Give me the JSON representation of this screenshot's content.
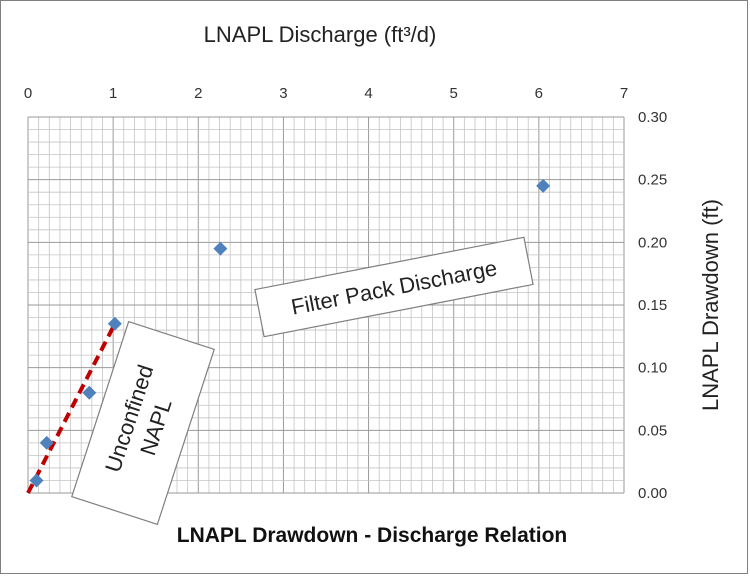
{
  "chart_data": {
    "type": "scatter",
    "title": "LNAPL Drawdown - Discharge Relation",
    "xlabel": "LNAPL Discharge (ft³/d)",
    "ylabel": "LNAPL Drawdown (ft)",
    "xlim": [
      0,
      7
    ],
    "ylim": [
      0,
      0.3
    ],
    "x_ticks": [
      "0",
      "1",
      "2",
      "3",
      "4",
      "5",
      "6",
      "7"
    ],
    "y_ticks": [
      "0.00",
      "0.05",
      "0.10",
      "0.15",
      "0.20",
      "0.25",
      "0.30"
    ],
    "x_axis_position": "top",
    "y_axis_position": "right",
    "grid": true,
    "series": [
      {
        "marker": "diamond",
        "color": "#4f81bd",
        "points": [
          {
            "x": 0.1,
            "y": 0.01
          },
          {
            "x": 0.22,
            "y": 0.04
          },
          {
            "x": 0.72,
            "y": 0.08
          },
          {
            "x": 1.02,
            "y": 0.135
          },
          {
            "x": 2.26,
            "y": 0.195
          },
          {
            "x": 6.05,
            "y": 0.245
          }
        ]
      }
    ],
    "trend_line": {
      "style": "dashed",
      "color": "#c00000",
      "points": [
        {
          "x": 0,
          "y": 0
        },
        {
          "x": 1.02,
          "y": 0.135
        }
      ]
    },
    "annotations": [
      {
        "lines": [
          "Unconfined",
          "NAPL"
        ]
      },
      {
        "lines": [
          "Filter Pack Discharge"
        ]
      }
    ]
  }
}
